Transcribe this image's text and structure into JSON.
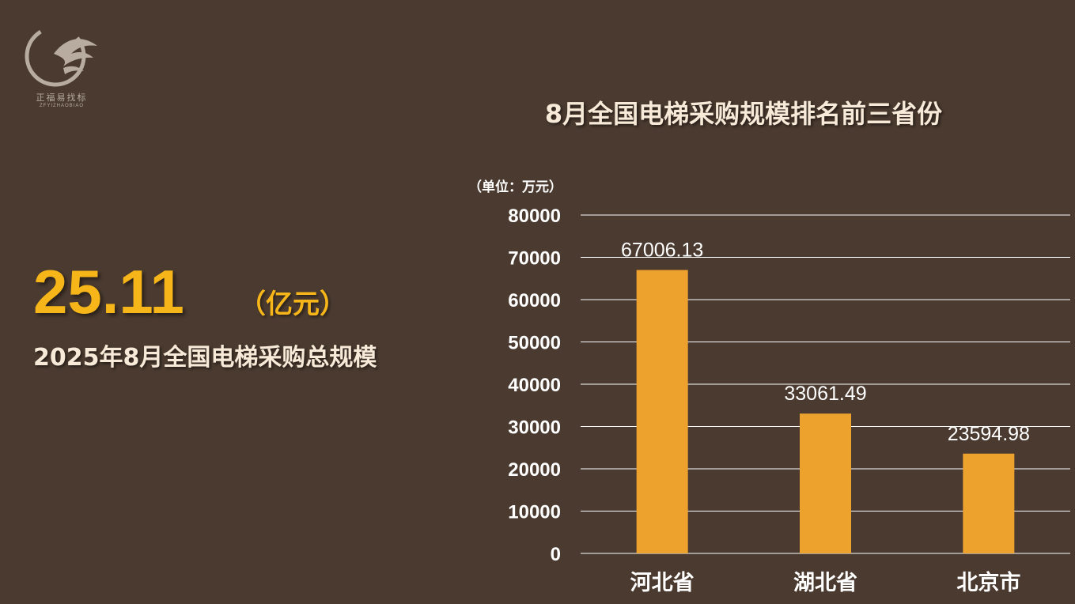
{
  "logo": {
    "name": "正福易找标",
    "sub": "ZFYIZHAOBIAO"
  },
  "summary": {
    "value": "25.11",
    "unit": "（亿元）",
    "caption": "2025年8月全国电梯采购总规模"
  },
  "colors": {
    "background": "#4a3a2f",
    "bar": "#eea22e",
    "highlight": "#f6b61a"
  },
  "chart_data": {
    "type": "bar",
    "title": "8月全国电梯采购规模排名前三省份",
    "unit_label": "（单位：万元）",
    "categories": [
      "河北省",
      "湖北省",
      "北京市"
    ],
    "values": [
      67006.13,
      33061.49,
      23594.98
    ],
    "data_labels": [
      "67006.13",
      "33061.49",
      "23594.98"
    ],
    "ylim": [
      0,
      80000
    ],
    "yticks": [
      0,
      10000,
      20000,
      30000,
      40000,
      50000,
      60000,
      70000,
      80000
    ],
    "grid": true,
    "legend": "none"
  }
}
